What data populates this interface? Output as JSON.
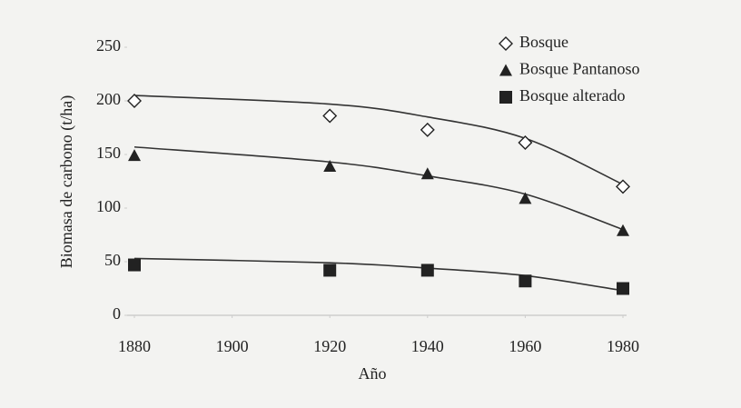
{
  "chart_data": {
    "type": "scatter",
    "x_label": "Año",
    "y_label": "Biomasa de carbono (t/ha)",
    "x": [
      1880,
      1920,
      1940,
      1960,
      1980
    ],
    "series": [
      {
        "name": "Bosque",
        "marker": "diamond",
        "color": "#222222",
        "values": [
          200,
          186,
          173,
          161,
          120
        ],
        "trend": [
          205,
          197,
          185,
          165,
          122
        ]
      },
      {
        "name": "Bosque Pantanoso",
        "marker": "triangle",
        "color": "#222222",
        "values": [
          149,
          139,
          132,
          109,
          79
        ],
        "trend": [
          157,
          143,
          130,
          113,
          80
        ]
      },
      {
        "name": "Bosque alterado",
        "marker": "square",
        "color": "#222222",
        "values": [
          47,
          42,
          42,
          32,
          25
        ],
        "trend": [
          53,
          49,
          44,
          37,
          23
        ]
      }
    ],
    "xlim": [
      1880,
      1980
    ],
    "xticks": [
      1880,
      1900,
      1920,
      1940,
      1960,
      1980
    ],
    "ylim": [
      0,
      250
    ],
    "yticks": [
      0,
      50,
      100,
      150,
      200,
      250
    ],
    "legend": "top-right"
  }
}
